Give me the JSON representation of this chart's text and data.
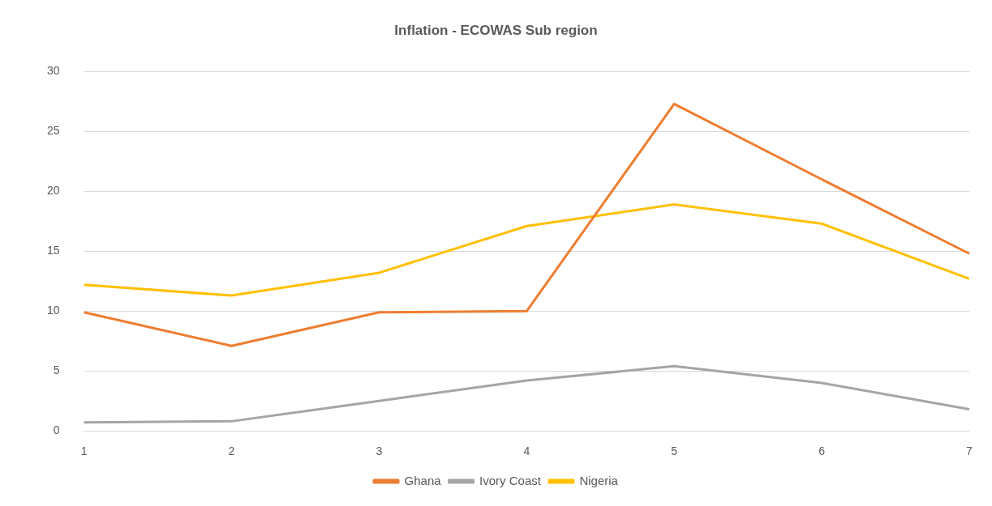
{
  "chart_data": {
    "type": "line",
    "title": "Inflation - ECOWAS Sub region",
    "categories": [
      "1",
      "2",
      "3",
      "4",
      "5",
      "6",
      "7"
    ],
    "series": [
      {
        "name": "Ghana",
        "color": "#ed7d31",
        "values": [
          9.9,
          7.1,
          9.9,
          10.0,
          27.3,
          21.0,
          14.8
        ]
      },
      {
        "name": "Ivory Coast",
        "color": "#a5a5a5",
        "values": [
          0.7,
          0.8,
          2.5,
          4.2,
          5.4,
          4.0,
          1.8
        ]
      },
      {
        "name": "Nigeria",
        "color": "#ffc000",
        "values": [
          12.2,
          11.3,
          13.2,
          17.1,
          18.9,
          17.3,
          12.7
        ]
      }
    ],
    "ylim": [
      0,
      30
    ],
    "yticks": [
      0,
      5,
      10,
      15,
      20,
      25,
      30
    ],
    "grid": "y",
    "legend": "bottom",
    "marker": "none",
    "line_style": "solid"
  }
}
